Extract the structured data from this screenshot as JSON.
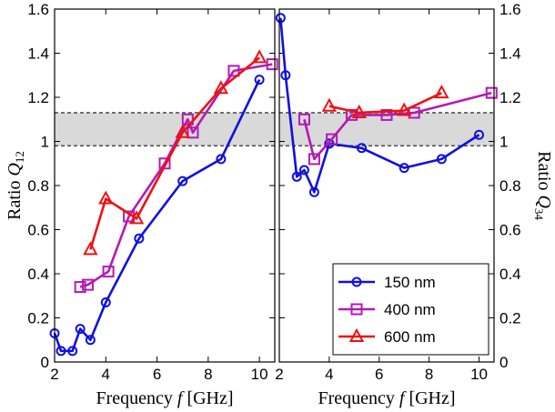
{
  "chart_data": [
    {
      "type": "line",
      "panel": "left",
      "xlabel": "Frequency f [GHz]",
      "xlabel_parts": [
        "Frequency ",
        "f",
        " [GHz]"
      ],
      "ylabel": "Ratio Q12",
      "ylabel_parts": [
        "Ratio ",
        "Q",
        "12"
      ],
      "xlim": [
        2,
        10.6
      ],
      "ylim": [
        0,
        1.6
      ],
      "xticks": [
        2,
        4,
        6,
        8,
        10
      ],
      "xtick_labels": [
        "2",
        "4",
        "6",
        "8",
        "10"
      ],
      "yticks": [
        0,
        0.2,
        0.4,
        0.6,
        0.8,
        1,
        1.2,
        1.4,
        1.6
      ],
      "ytick_labels": [
        "0",
        "0.2",
        "0.4",
        "0.6",
        "0.8",
        "1",
        "1.2",
        "1.4",
        "1.6"
      ],
      "band": [
        0.98,
        1.13
      ],
      "series": [
        {
          "name": "150 nm",
          "color": "#1010e0",
          "marker": "circle",
          "x": [
            2.0,
            2.25,
            2.7,
            3.0,
            3.4,
            4.0,
            5.3,
            7.0,
            8.5,
            10.0
          ],
          "y": [
            0.13,
            0.05,
            0.05,
            0.15,
            0.1,
            0.27,
            0.56,
            0.82,
            0.92,
            1.28
          ]
        },
        {
          "name": "400 nm",
          "color": "#b419b4",
          "marker": "square",
          "x": [
            3.0,
            3.3,
            4.1,
            4.9,
            6.3,
            7.2,
            7.4,
            9.0,
            10.5
          ],
          "y": [
            0.34,
            0.35,
            0.41,
            0.66,
            0.9,
            1.1,
            1.04,
            1.32,
            1.35
          ]
        },
        {
          "name": "600 nm",
          "color": "#f01010",
          "marker": "triangle",
          "x": [
            3.4,
            4.0,
            5.2,
            7.0,
            8.5,
            10.0
          ],
          "y": [
            0.51,
            0.74,
            0.65,
            1.04,
            1.24,
            1.38
          ]
        }
      ]
    },
    {
      "type": "line",
      "panel": "right",
      "xlabel": "Frequency f [GHz]",
      "xlabel_parts": [
        "Frequency ",
        "f",
        " [GHz]"
      ],
      "ylabel": "Ratio Q34",
      "ylabel_parts": [
        "Ratio ",
        "Q",
        "34"
      ],
      "xlim": [
        2,
        10.6
      ],
      "ylim": [
        0,
        1.6
      ],
      "xticks": [
        2,
        4,
        6,
        8,
        10
      ],
      "xtick_labels": [
        "2",
        "4",
        "6",
        "8",
        "10"
      ],
      "yticks": [
        0,
        0.2,
        0.4,
        0.6,
        0.8,
        1,
        1.2,
        1.4,
        1.6
      ],
      "ytick_labels": [
        "0",
        "0.2",
        "0.4",
        "0.6",
        "0.8",
        "1",
        "1.2",
        "1.4",
        "1.6"
      ],
      "band": [
        0.98,
        1.13
      ],
      "legend": "bottom-right",
      "series": [
        {
          "name": "150 nm",
          "color": "#1010e0",
          "marker": "circle",
          "x": [
            2.05,
            2.25,
            2.7,
            3.0,
            3.4,
            4.0,
            5.3,
            7.0,
            8.5,
            10.0
          ],
          "y": [
            1.56,
            1.3,
            0.84,
            0.87,
            0.77,
            0.99,
            0.97,
            0.88,
            0.92,
            1.03
          ]
        },
        {
          "name": "400 nm",
          "color": "#b419b4",
          "marker": "square",
          "x": [
            3.0,
            3.4,
            4.1,
            4.9,
            6.3,
            7.4,
            10.5
          ],
          "y": [
            1.1,
            0.92,
            1.01,
            1.12,
            1.12,
            1.13,
            1.22
          ]
        },
        {
          "name": "600 nm",
          "color": "#f01010",
          "marker": "triangle",
          "x": [
            4.0,
            5.2,
            7.0,
            8.5
          ],
          "y": [
            1.16,
            1.13,
            1.14,
            1.22
          ]
        }
      ]
    }
  ]
}
